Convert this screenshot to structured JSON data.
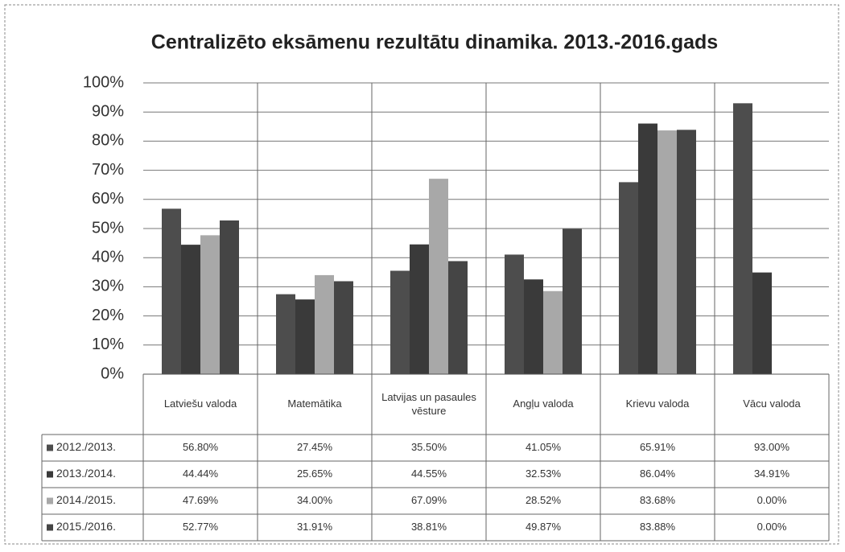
{
  "chart_data": {
    "type": "bar",
    "title": "Centralizēto eksāmenu rezultātu dinamika. 2013.-2016.gads",
    "categories": [
      "Latviešu valoda",
      "Matemātika",
      "Latvijas un pasaules vēsture",
      "Angļu valoda",
      "Krievu valoda",
      "Vācu valoda"
    ],
    "series": [
      {
        "name": "2012./2013.",
        "color": "#4d4d4d",
        "values": [
          56.8,
          27.45,
          35.5,
          41.05,
          65.91,
          93.0
        ],
        "value_labels": [
          "56.80%",
          "27.45%",
          "35.50%",
          "41.05%",
          "65.91%",
          "93.00%"
        ]
      },
      {
        "name": "2013./2014.",
        "color": "#3a3a3a",
        "values": [
          44.44,
          25.65,
          44.55,
          32.53,
          86.04,
          34.91
        ],
        "value_labels": [
          "44.44%",
          "25.65%",
          "44.55%",
          "32.53%",
          "86.04%",
          "34.91%"
        ]
      },
      {
        "name": "2014./2015.",
        "color": "#a8a8a8",
        "values": [
          47.69,
          34.0,
          67.09,
          28.52,
          83.68,
          0.0
        ],
        "value_labels": [
          "47.69%",
          "34.00%",
          "67.09%",
          "28.52%",
          "83.68%",
          "0.00%"
        ]
      },
      {
        "name": "2015./2016.",
        "color": "#454545",
        "values": [
          52.77,
          31.91,
          38.81,
          49.87,
          83.88,
          0.0
        ],
        "value_labels": [
          "52.77%",
          "31.91%",
          "38.81%",
          "49.87%",
          "83.88%",
          "0.00%"
        ]
      }
    ],
    "ylim": [
      0,
      100
    ],
    "yticks": [
      {
        "value": 0,
        "label": "0%"
      },
      {
        "value": 10,
        "label": "10%"
      },
      {
        "value": 20,
        "label": "20%"
      },
      {
        "value": 30,
        "label": "30%"
      },
      {
        "value": 40,
        "label": "40%"
      },
      {
        "value": 50,
        "label": "50%"
      },
      {
        "value": 60,
        "label": "60%"
      },
      {
        "value": 70,
        "label": "70%"
      },
      {
        "value": 80,
        "label": "80%"
      },
      {
        "value": 90,
        "label": "90%"
      },
      {
        "value": 100,
        "label": "100%"
      }
    ],
    "grid": true
  }
}
